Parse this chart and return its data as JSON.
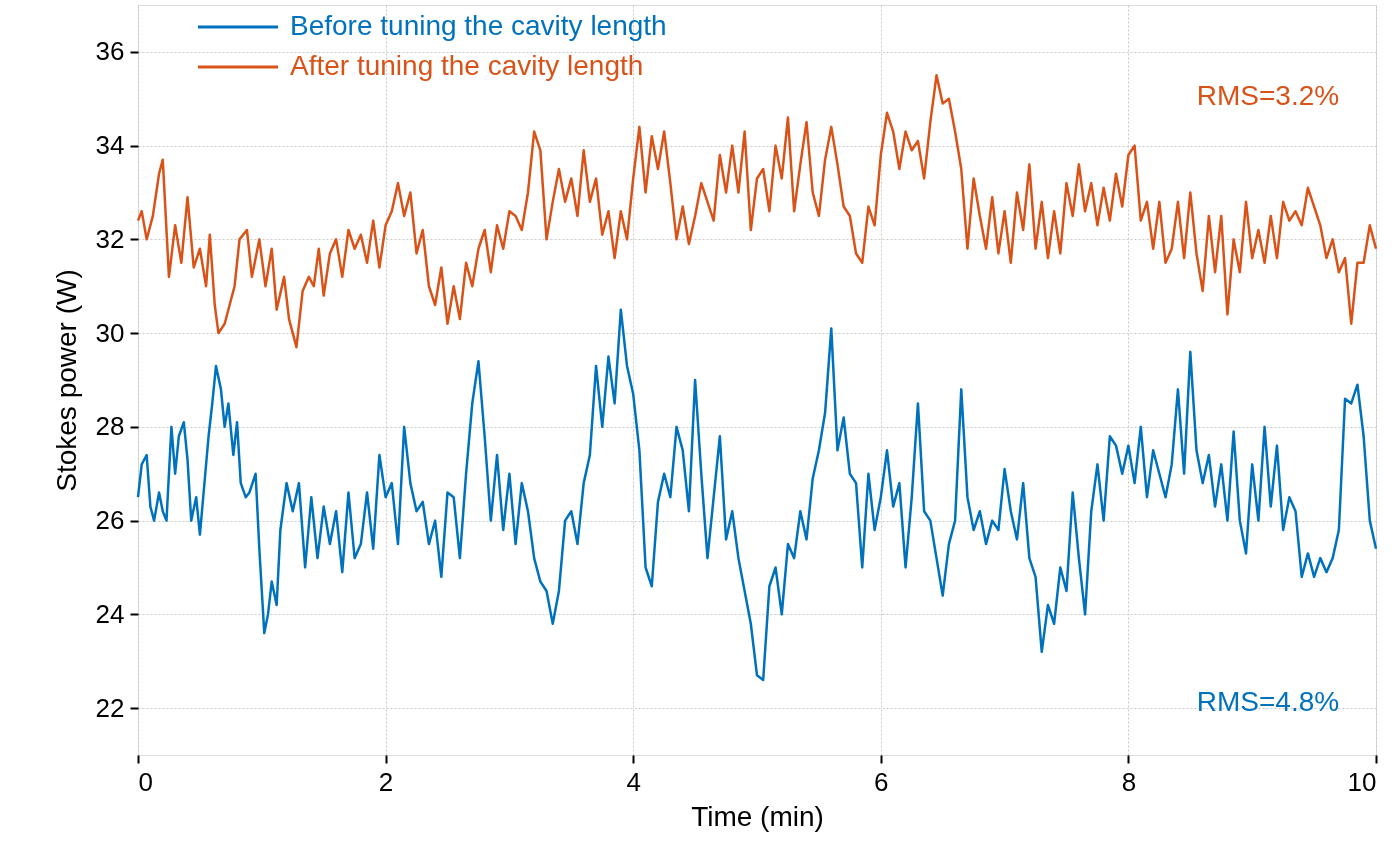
{
  "chart_data": {
    "type": "line",
    "xlabel": "Time (min)",
    "ylabel": "Stokes power (W)",
    "xlim": [
      0,
      10
    ],
    "xticks": [
      0,
      2,
      4,
      6,
      8,
      10
    ],
    "ylim": [
      21,
      37
    ],
    "yticks": [
      22,
      24,
      26,
      28,
      30,
      32,
      34,
      36
    ],
    "grid": true,
    "legend": "top left",
    "line_style": "solid",
    "marker": "none",
    "annotations": [
      "RMS=4.8%",
      "RMS=3.2%"
    ],
    "series": [
      {
        "name": "Before tuning the cavity length",
        "color": "#0072bd",
        "x": [
          0,
          0.03,
          0.07,
          0.1,
          0.13,
          0.17,
          0.2,
          0.23,
          0.27,
          0.3,
          0.33,
          0.37,
          0.4,
          0.43,
          0.47,
          0.5,
          0.53,
          0.57,
          0.6,
          0.63,
          0.67,
          0.7,
          0.73,
          0.77,
          0.8,
          0.83,
          0.87,
          0.9,
          0.95,
          0.98,
          1.0,
          1.02,
          1.05,
          1.08,
          1.12,
          1.15,
          1.2,
          1.25,
          1.3,
          1.35,
          1.4,
          1.45,
          1.5,
          1.55,
          1.6,
          1.65,
          1.7,
          1.75,
          1.8,
          1.85,
          1.9,
          1.95,
          2.0,
          2.05,
          2.1,
          2.15,
          2.2,
          2.25,
          2.3,
          2.35,
          2.4,
          2.45,
          2.5,
          2.55,
          2.6,
          2.65,
          2.7,
          2.75,
          2.8,
          2.85,
          2.9,
          2.95,
          3.0,
          3.05,
          3.1,
          3.15,
          3.2,
          3.25,
          3.3,
          3.35,
          3.4,
          3.45,
          3.5,
          3.55,
          3.6,
          3.65,
          3.7,
          3.75,
          3.8,
          3.85,
          3.9,
          3.95,
          4.0,
          4.05,
          4.1,
          4.15,
          4.2,
          4.25,
          4.3,
          4.35,
          4.4,
          4.45,
          4.5,
          4.55,
          4.6,
          4.65,
          4.7,
          4.75,
          4.8,
          4.85,
          4.9,
          4.95,
          5.0,
          5.05,
          5.1,
          5.15,
          5.2,
          5.25,
          5.3,
          5.35,
          5.4,
          5.45,
          5.5,
          5.55,
          5.6,
          5.65,
          5.7,
          5.75,
          5.8,
          5.85,
          5.9,
          5.95,
          6.0,
          6.05,
          6.1,
          6.15,
          6.2,
          6.25,
          6.3,
          6.35,
          6.4,
          6.45,
          6.5,
          6.55,
          6.6,
          6.65,
          6.7,
          6.75,
          6.8,
          6.85,
          6.9,
          6.95,
          7.0,
          7.05,
          7.1,
          7.15,
          7.2,
          7.25,
          7.3,
          7.35,
          7.4,
          7.45,
          7.5,
          7.55,
          7.6,
          7.65,
          7.7,
          7.75,
          7.8,
          7.85,
          7.9,
          7.95,
          8.0,
          8.05,
          8.1,
          8.15,
          8.2,
          8.25,
          8.3,
          8.35,
          8.4,
          8.45,
          8.5,
          8.55,
          8.6,
          8.65,
          8.7,
          8.75,
          8.8,
          8.85,
          8.9,
          8.95,
          9.0,
          9.05,
          9.1,
          9.15,
          9.2,
          9.25,
          9.3,
          9.35,
          9.4,
          9.45,
          9.5,
          9.55,
          9.6,
          9.65,
          9.7,
          9.75,
          9.8,
          9.85,
          9.9,
          9.95,
          10.0
        ],
        "values": [
          26.5,
          27.2,
          27.4,
          26.3,
          26.0,
          26.6,
          26.2,
          26.0,
          28.0,
          27.0,
          27.8,
          28.1,
          27.3,
          26.0,
          26.5,
          25.7,
          26.6,
          27.8,
          28.5,
          29.3,
          28.8,
          28.0,
          28.5,
          27.4,
          28.1,
          26.8,
          26.5,
          26.6,
          27.0,
          25.4,
          24.5,
          23.6,
          24.0,
          24.7,
          24.2,
          25.8,
          26.8,
          26.2,
          26.8,
          25.0,
          26.5,
          25.2,
          26.3,
          25.5,
          26.2,
          24.9,
          26.6,
          25.2,
          25.5,
          26.6,
          25.4,
          27.4,
          26.5,
          26.8,
          25.5,
          28.0,
          26.8,
          26.2,
          26.4,
          25.5,
          26.0,
          24.8,
          26.6,
          26.5,
          25.2,
          27.0,
          28.5,
          29.4,
          27.8,
          26.0,
          27.4,
          25.8,
          27.0,
          25.5,
          26.8,
          26.2,
          25.2,
          24.7,
          24.5,
          23.8,
          24.5,
          26.0,
          26.2,
          25.5,
          26.8,
          27.4,
          29.3,
          28.0,
          29.5,
          28.5,
          30.5,
          29.3,
          28.7,
          27.5,
          25.0,
          24.6,
          26.4,
          27.0,
          26.5,
          28.0,
          27.5,
          26.2,
          29.0,
          27.0,
          25.2,
          26.5,
          27.8,
          25.6,
          26.2,
          25.2,
          24.5,
          23.8,
          22.7,
          22.6,
          24.6,
          25.0,
          24.0,
          25.5,
          25.2,
          26.2,
          25.6,
          26.9,
          27.5,
          28.3,
          30.1,
          27.5,
          28.2,
          27.0,
          26.8,
          25.0,
          27.0,
          25.8,
          26.5,
          27.5,
          26.3,
          26.8,
          25.0,
          26.5,
          28.5,
          26.2,
          26.0,
          25.2,
          24.4,
          25.5,
          26.0,
          28.8,
          26.5,
          25.8,
          26.2,
          25.5,
          26.0,
          25.8,
          27.1,
          26.2,
          25.6,
          26.8,
          25.2,
          24.8,
          23.2,
          24.2,
          23.8,
          25.0,
          24.5,
          26.6,
          25.2,
          24.0,
          26.2,
          27.2,
          26.0,
          27.8,
          27.6,
          27.0,
          27.6,
          26.8,
          28.0,
          26.5,
          27.5,
          27.0,
          26.5,
          27.2,
          28.8,
          27.0,
          29.6,
          27.5,
          26.8,
          27.4,
          26.3,
          27.2,
          26.0,
          27.9,
          26.0,
          25.3,
          27.2,
          26.0,
          28.0,
          26.3,
          27.6,
          25.8,
          26.5,
          26.2,
          24.8,
          25.3,
          24.8,
          25.2,
          24.9,
          25.2,
          25.8,
          28.6,
          28.5,
          28.9,
          27.8,
          26.0,
          25.4
        ]
      },
      {
        "name": "After tuning the cavity length",
        "color": "#d95319",
        "x": [
          0,
          0.03,
          0.07,
          0.12,
          0.17,
          0.2,
          0.25,
          0.3,
          0.35,
          0.4,
          0.45,
          0.5,
          0.55,
          0.58,
          0.62,
          0.65,
          0.7,
          0.78,
          0.82,
          0.88,
          0.92,
          0.98,
          1.03,
          1.08,
          1.12,
          1.18,
          1.22,
          1.28,
          1.33,
          1.38,
          1.42,
          1.46,
          1.5,
          1.55,
          1.6,
          1.65,
          1.7,
          1.75,
          1.8,
          1.85,
          1.9,
          1.95,
          2.0,
          2.05,
          2.1,
          2.15,
          2.2,
          2.25,
          2.3,
          2.35,
          2.4,
          2.45,
          2.5,
          2.55,
          2.6,
          2.65,
          2.7,
          2.75,
          2.8,
          2.85,
          2.9,
          2.95,
          3.0,
          3.05,
          3.1,
          3.15,
          3.2,
          3.25,
          3.3,
          3.35,
          3.4,
          3.45,
          3.5,
          3.55,
          3.6,
          3.65,
          3.7,
          3.75,
          3.8,
          3.85,
          3.9,
          3.95,
          4.0,
          4.05,
          4.1,
          4.15,
          4.2,
          4.25,
          4.3,
          4.35,
          4.4,
          4.45,
          4.5,
          4.55,
          4.6,
          4.65,
          4.7,
          4.75,
          4.8,
          4.85,
          4.9,
          4.95,
          5.0,
          5.05,
          5.1,
          5.15,
          5.2,
          5.25,
          5.3,
          5.35,
          5.4,
          5.45,
          5.5,
          5.55,
          5.6,
          5.65,
          5.7,
          5.75,
          5.8,
          5.85,
          5.9,
          5.95,
          6.0,
          6.05,
          6.1,
          6.15,
          6.2,
          6.25,
          6.3,
          6.35,
          6.4,
          6.45,
          6.5,
          6.55,
          6.6,
          6.65,
          6.7,
          6.75,
          6.8,
          6.85,
          6.9,
          6.95,
          7.0,
          7.05,
          7.1,
          7.15,
          7.2,
          7.25,
          7.3,
          7.35,
          7.4,
          7.45,
          7.5,
          7.55,
          7.6,
          7.65,
          7.7,
          7.75,
          7.8,
          7.85,
          7.9,
          7.95,
          8.0,
          8.05,
          8.1,
          8.15,
          8.2,
          8.25,
          8.3,
          8.35,
          8.4,
          8.45,
          8.5,
          8.55,
          8.6,
          8.65,
          8.7,
          8.75,
          8.8,
          8.85,
          8.9,
          8.95,
          9.0,
          9.05,
          9.1,
          9.15,
          9.2,
          9.25,
          9.3,
          9.35,
          9.4,
          9.45,
          9.5,
          9.55,
          9.6,
          9.65,
          9.7,
          9.75,
          9.8,
          9.85,
          9.9,
          9.95,
          10.0
        ],
        "values": [
          32.4,
          32.6,
          32.0,
          32.5,
          33.4,
          33.7,
          31.2,
          32.3,
          31.5,
          32.9,
          31.4,
          31.8,
          31.0,
          32.1,
          30.6,
          30.0,
          30.2,
          31.0,
          32.0,
          32.2,
          31.2,
          32.0,
          31.0,
          31.8,
          30.5,
          31.2,
          30.3,
          29.7,
          30.9,
          31.2,
          31.0,
          31.8,
          30.8,
          31.7,
          32.0,
          31.2,
          32.2,
          31.8,
          32.1,
          31.5,
          32.4,
          31.4,
          32.3,
          32.6,
          33.2,
          32.5,
          33.0,
          31.7,
          32.2,
          31.0,
          30.6,
          31.4,
          30.2,
          31.0,
          30.3,
          31.5,
          31.0,
          31.8,
          32.2,
          31.3,
          32.3,
          31.8,
          32.6,
          32.5,
          32.2,
          33.0,
          34.3,
          33.9,
          32.0,
          32.8,
          33.5,
          32.8,
          33.3,
          32.5,
          33.9,
          32.8,
          33.3,
          32.1,
          32.6,
          31.6,
          32.6,
          32.0,
          33.3,
          34.4,
          33.0,
          34.2,
          33.5,
          34.3,
          33.2,
          32.0,
          32.7,
          31.9,
          32.5,
          33.2,
          32.8,
          32.4,
          33.8,
          33.0,
          34.0,
          33.0,
          34.3,
          32.2,
          33.3,
          33.5,
          32.6,
          34.0,
          33.3,
          34.6,
          32.6,
          33.6,
          34.5,
          33.0,
          32.5,
          33.7,
          34.4,
          33.6,
          32.7,
          32.5,
          31.7,
          31.5,
          32.7,
          32.3,
          33.8,
          34.7,
          34.3,
          33.5,
          34.3,
          33.9,
          34.1,
          33.3,
          34.5,
          35.5,
          34.9,
          35.0,
          34.3,
          33.5,
          31.8,
          33.3,
          32.5,
          31.8,
          32.9,
          31.7,
          32.6,
          31.5,
          33.0,
          32.2,
          33.6,
          31.8,
          32.8,
          31.6,
          32.6,
          31.7,
          33.2,
          32.5,
          33.6,
          32.6,
          33.2,
          32.3,
          33.1,
          32.4,
          33.4,
          32.7,
          33.8,
          34.0,
          32.4,
          32.8,
          31.8,
          32.8,
          31.5,
          31.8,
          32.8,
          31.6,
          33.0,
          31.7,
          30.9,
          32.5,
          31.3,
          32.5,
          30.4,
          32.0,
          31.3,
          32.8,
          31.6,
          32.2,
          31.5,
          32.5,
          31.6,
          32.8,
          32.4,
          32.6,
          32.3,
          33.1,
          32.7,
          32.3,
          31.6,
          32.0,
          31.3,
          31.6,
          30.2,
          31.5,
          31.5,
          32.3,
          31.8
        ]
      }
    ]
  }
}
